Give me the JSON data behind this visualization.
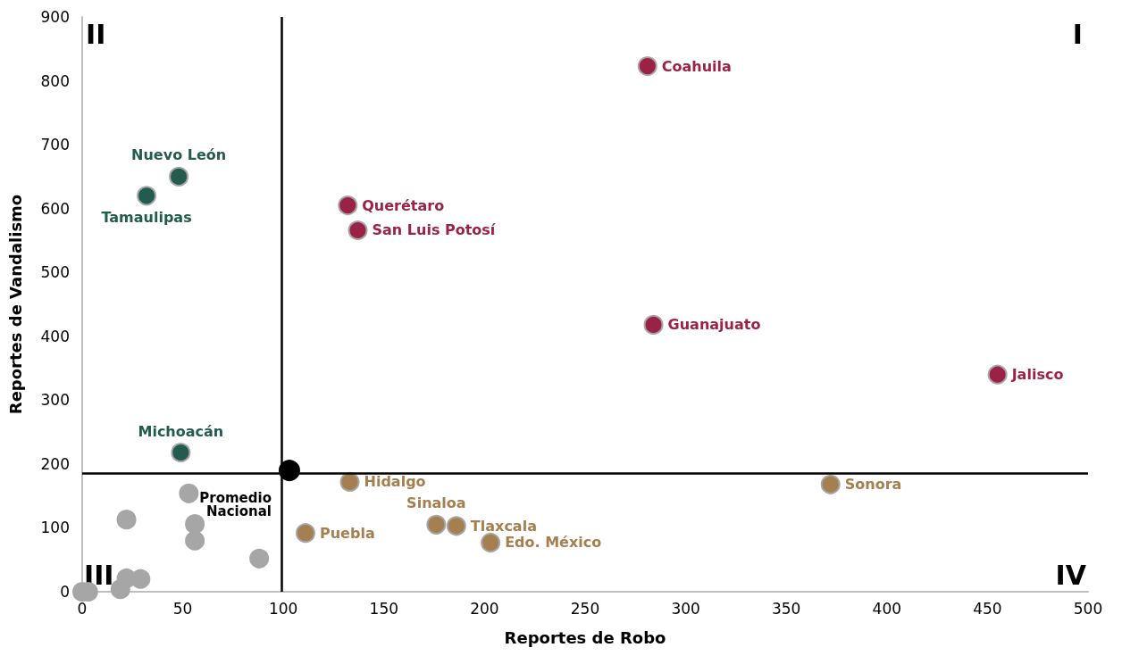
{
  "chart_data": {
    "type": "scatter",
    "xlabel": "Reportes de Robo",
    "ylabel": "Reportes de Vandalismo",
    "xlim": [
      0,
      500
    ],
    "xticks": [
      0,
      50,
      100,
      150,
      200,
      250,
      300,
      350,
      400,
      450,
      500
    ],
    "ylim": [
      0,
      900
    ],
    "yticks": [
      0,
      100,
      200,
      300,
      400,
      500,
      600,
      700,
      800,
      900
    ],
    "grid": false,
    "marker": "circle",
    "series": [
      {
        "color": "#a6a6a6",
        "x": [
          53,
          22,
          56,
          56,
          88,
          29,
          22,
          19,
          3,
          0
        ],
        "values": [
          154,
          113,
          106,
          80,
          52,
          20,
          21,
          4,
          0,
          0
        ]
      },
      {
        "color": "#9b2247",
        "x": [
          281,
          132,
          137,
          284,
          455
        ],
        "values": [
          823,
          605,
          566,
          418,
          340
        ],
        "value_labels": [
          "Coahuila",
          "Querétaro",
          "San Luis Potosí",
          "Guanajuato",
          "Jalisco"
        ]
      },
      {
        "color": "#235b4e",
        "x": [
          48,
          32,
          49
        ],
        "values": [
          650,
          620,
          218
        ],
        "value_labels": [
          "Nuevo León",
          "Tamaulipas",
          "Michoacán"
        ]
      },
      {
        "color": "#a57f4f",
        "x": [
          133,
          372,
          176,
          186,
          203,
          111
        ],
        "values": [
          172,
          168,
          105,
          103,
          77,
          92
        ],
        "value_labels": [
          "Hidalgo",
          "Sonora",
          "Sinaloa",
          "Tlaxcala",
          "Edo. México",
          "Puebla"
        ]
      },
      {
        "color": "#000000",
        "x": [
          103
        ],
        "values": [
          190
        ],
        "value_labels": [
          "Promedio\nNacional"
        ]
      }
    ],
    "ref_lines": [
      {
        "axis": "x",
        "value": 99,
        "color": "#000000"
      },
      {
        "axis": "y",
        "value": 186,
        "color": "#000000"
      }
    ],
    "annotations": [
      "I",
      "II",
      "III",
      "IV"
    ]
  }
}
